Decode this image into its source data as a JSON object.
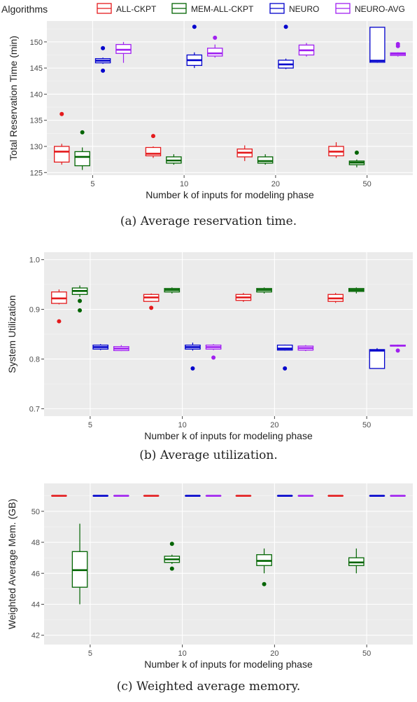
{
  "legend": {
    "title": "Algorithms",
    "items": [
      {
        "label": "ALL-CKPT",
        "color": "#e41a1c"
      },
      {
        "label": "MEM-ALL-CKPT",
        "color": "#006400"
      },
      {
        "label": "NEURO",
        "color": "#0000cc"
      },
      {
        "label": "NEURO-AVG",
        "color": "#a020f0"
      }
    ]
  },
  "captions": {
    "a": "(a) Average reservation time.",
    "b": "(b) Average utilization.",
    "c": "(c) Weighted average memory."
  },
  "chart_data": [
    {
      "type": "box",
      "xlabel": "Number k of inputs for modeling phase",
      "ylabel": "Total Reservation Time (min)",
      "categories": [
        "5",
        "10",
        "20",
        "50"
      ],
      "ylim": [
        124.5,
        154
      ],
      "yticks": [
        125,
        130,
        135,
        140,
        145,
        150
      ],
      "series": [
        {
          "name": "ALL-CKPT",
          "boxes": [
            {
              "min": 126.5,
              "q1": 127.0,
              "median": 129.0,
              "q3": 130.0,
              "max": 130.5,
              "outliers": [
                136.2
              ]
            },
            {
              "min": 127.8,
              "q1": 128.2,
              "median": 128.6,
              "q3": 129.8,
              "max": 130.0,
              "outliers": [
                132.0
              ]
            },
            {
              "min": 127.2,
              "q1": 128.0,
              "median": 128.8,
              "q3": 129.5,
              "max": 130.2,
              "outliers": []
            },
            {
              "min": 127.8,
              "q1": 128.2,
              "median": 129.0,
              "q3": 130.0,
              "max": 130.8,
              "outliers": []
            }
          ]
        },
        {
          "name": "MEM-ALL-CKPT",
          "boxes": [
            {
              "min": 125.5,
              "q1": 126.3,
              "median": 128.0,
              "q3": 129.0,
              "max": 129.8,
              "outliers": [
                132.7
              ]
            },
            {
              "min": 126.5,
              "q1": 126.8,
              "median": 127.3,
              "q3": 128.0,
              "max": 128.5,
              "outliers": []
            },
            {
              "min": 126.5,
              "q1": 126.8,
              "median": 127.2,
              "q3": 128.0,
              "max": 128.5,
              "outliers": []
            },
            {
              "min": 126.0,
              "q1": 126.5,
              "median": 126.9,
              "q3": 127.2,
              "max": 127.5,
              "outliers": [
                128.8
              ]
            }
          ]
        },
        {
          "name": "NEURO",
          "boxes": [
            {
              "min": 145.8,
              "q1": 146.0,
              "median": 146.4,
              "q3": 146.8,
              "max": 147.0,
              "outliers": [
                148.8,
                144.5
              ]
            },
            {
              "min": 145.0,
              "q1": 145.5,
              "median": 146.5,
              "q3": 147.5,
              "max": 148.0,
              "outliers": [
                152.9
              ]
            },
            {
              "min": 144.8,
              "q1": 145.0,
              "median": 145.7,
              "q3": 146.5,
              "max": 146.8,
              "outliers": [
                152.9
              ]
            },
            {
              "min": 146.0,
              "q1": 146.1,
              "median": 146.4,
              "q3": 152.8,
              "max": 152.8,
              "outliers": []
            }
          ]
        },
        {
          "name": "NEURO-AVG",
          "boxes": [
            {
              "min": 146.0,
              "q1": 147.8,
              "median": 148.5,
              "q3": 149.5,
              "max": 150.0,
              "outliers": []
            },
            {
              "min": 147.0,
              "q1": 147.3,
              "median": 147.8,
              "q3": 148.8,
              "max": 149.5,
              "outliers": [
                150.8
              ]
            },
            {
              "min": 147.2,
              "q1": 147.5,
              "median": 148.4,
              "q3": 149.4,
              "max": 149.8,
              "outliers": []
            },
            {
              "min": 147.2,
              "q1": 147.4,
              "median": 147.7,
              "q3": 147.9,
              "max": 148.0,
              "outliers": [
                149.6,
                149.2
              ]
            }
          ]
        }
      ]
    },
    {
      "type": "box",
      "xlabel": "Number k of inputs for modeling phase",
      "ylabel": "System Utilization",
      "categories": [
        "5",
        "10",
        "20",
        "50"
      ],
      "ylim": [
        0.685,
        1.015
      ],
      "yticks": [
        "0.7",
        "0.8",
        "0.9",
        "1.0"
      ],
      "series": [
        {
          "name": "ALL-CKPT",
          "boxes": [
            {
              "min": 0.91,
              "q1": 0.912,
              "median": 0.922,
              "q3": 0.935,
              "max": 0.94,
              "outliers": [
                0.876
              ]
            },
            {
              "min": 0.915,
              "q1": 0.916,
              "median": 0.924,
              "q3": 0.93,
              "max": 0.932,
              "outliers": [
                0.903
              ]
            },
            {
              "min": 0.915,
              "q1": 0.918,
              "median": 0.924,
              "q3": 0.93,
              "max": 0.933,
              "outliers": []
            },
            {
              "min": 0.913,
              "q1": 0.916,
              "median": 0.922,
              "q3": 0.93,
              "max": 0.933,
              "outliers": []
            }
          ]
        },
        {
          "name": "MEM-ALL-CKPT",
          "boxes": [
            {
              "min": 0.925,
              "q1": 0.93,
              "median": 0.937,
              "q3": 0.943,
              "max": 0.948,
              "outliers": [
                0.917,
                0.898
              ]
            },
            {
              "min": 0.932,
              "q1": 0.935,
              "median": 0.939,
              "q3": 0.942,
              "max": 0.944,
              "outliers": []
            },
            {
              "min": 0.932,
              "q1": 0.935,
              "median": 0.939,
              "q3": 0.942,
              "max": 0.944,
              "outliers": []
            },
            {
              "min": 0.932,
              "q1": 0.936,
              "median": 0.939,
              "q3": 0.942,
              "max": 0.944,
              "outliers": []
            }
          ]
        },
        {
          "name": "NEURO",
          "boxes": [
            {
              "min": 0.818,
              "q1": 0.82,
              "median": 0.824,
              "q3": 0.828,
              "max": 0.83,
              "outliers": []
            },
            {
              "min": 0.817,
              "q1": 0.82,
              "median": 0.824,
              "q3": 0.828,
              "max": 0.833,
              "outliers": [
                0.781
              ]
            },
            {
              "min": 0.817,
              "q1": 0.818,
              "median": 0.821,
              "q3": 0.828,
              "max": 0.829,
              "outliers": [
                0.781
              ]
            },
            {
              "min": 0.781,
              "q1": 0.781,
              "median": 0.817,
              "q3": 0.819,
              "max": 0.822,
              "outliers": []
            }
          ]
        },
        {
          "name": "NEURO-AVG",
          "boxes": [
            {
              "min": 0.816,
              "q1": 0.817,
              "median": 0.821,
              "q3": 0.825,
              "max": 0.828,
              "outliers": []
            },
            {
              "min": 0.818,
              "q1": 0.82,
              "median": 0.824,
              "q3": 0.828,
              "max": 0.83,
              "outliers": [
                0.803
              ]
            },
            {
              "min": 0.816,
              "q1": 0.818,
              "median": 0.822,
              "q3": 0.826,
              "max": 0.828,
              "outliers": []
            },
            {
              "min": 0.825,
              "q1": 0.826,
              "median": 0.827,
              "q3": 0.828,
              "max": 0.829,
              "outliers": [
                0.817
              ]
            }
          ]
        }
      ]
    },
    {
      "type": "box",
      "xlabel": "Number k of inputs for modeling phase",
      "ylabel": "Weighted Average Mem. (GB)",
      "categories": [
        "5",
        "10",
        "20",
        "50"
      ],
      "ylim": [
        41.4,
        51.8
      ],
      "yticks": [
        42,
        44,
        46,
        48,
        50
      ],
      "series": [
        {
          "name": "ALL-CKPT",
          "boxes": [
            {
              "min": 51,
              "q1": 51,
              "median": 51,
              "q3": 51,
              "max": 51,
              "outliers": []
            },
            {
              "min": 51,
              "q1": 51,
              "median": 51,
              "q3": 51,
              "max": 51,
              "outliers": []
            },
            {
              "min": 51,
              "q1": 51,
              "median": 51,
              "q3": 51,
              "max": 51,
              "outliers": []
            },
            {
              "min": 51,
              "q1": 51,
              "median": 51,
              "q3": 51,
              "max": 51,
              "outliers": []
            }
          ]
        },
        {
          "name": "MEM-ALL-CKPT",
          "boxes": [
            {
              "min": 44.0,
              "q1": 45.1,
              "median": 46.2,
              "q3": 47.4,
              "max": 49.2,
              "outliers": []
            },
            {
              "min": 46.6,
              "q1": 46.7,
              "median": 46.9,
              "q3": 47.1,
              "max": 47.2,
              "outliers": [
                47.9,
                46.3
              ]
            },
            {
              "min": 46.0,
              "q1": 46.5,
              "median": 46.8,
              "q3": 47.2,
              "max": 47.6,
              "outliers": [
                45.3
              ]
            },
            {
              "min": 46.0,
              "q1": 46.5,
              "median": 46.7,
              "q3": 47.0,
              "max": 47.6,
              "outliers": []
            }
          ]
        },
        {
          "name": "NEURO",
          "boxes": [
            {
              "min": 51,
              "q1": 51,
              "median": 51,
              "q3": 51,
              "max": 51,
              "outliers": []
            },
            {
              "min": 51,
              "q1": 51,
              "median": 51,
              "q3": 51,
              "max": 51,
              "outliers": []
            },
            {
              "min": 51,
              "q1": 51,
              "median": 51,
              "q3": 51,
              "max": 51,
              "outliers": []
            },
            {
              "min": 51,
              "q1": 51,
              "median": 51,
              "q3": 51,
              "max": 51,
              "outliers": []
            }
          ]
        },
        {
          "name": "NEURO-AVG",
          "boxes": [
            {
              "min": 51,
              "q1": 51,
              "median": 51,
              "q3": 51,
              "max": 51,
              "outliers": []
            },
            {
              "min": 51,
              "q1": 51,
              "median": 51,
              "q3": 51,
              "max": 51,
              "outliers": []
            },
            {
              "min": 51,
              "q1": 51,
              "median": 51,
              "q3": 51,
              "max": 51,
              "outliers": []
            },
            {
              "min": 51,
              "q1": 51,
              "median": 51,
              "q3": 51,
              "max": 51,
              "outliers": []
            }
          ]
        }
      ]
    }
  ]
}
